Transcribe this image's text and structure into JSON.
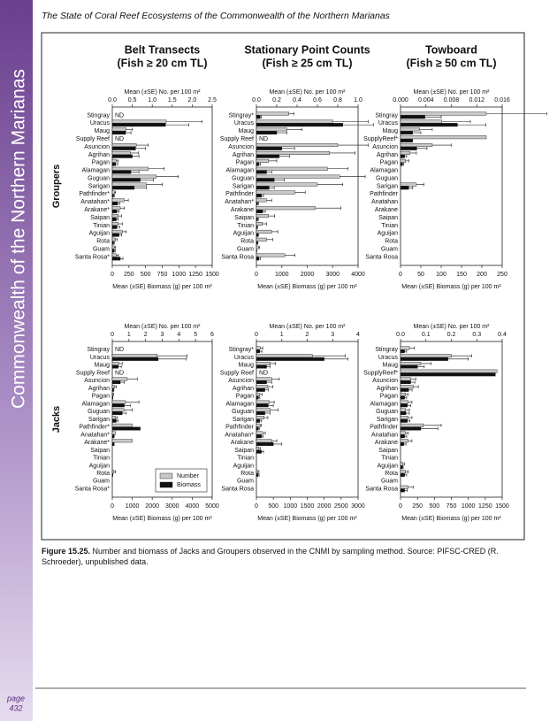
{
  "header": {
    "title": "The State of Coral Reef Ecosystems of the Commonwealth of the Northern Marianas"
  },
  "sidebar": {
    "title": "Commonwealth of the Northern Marianas",
    "page_label": "page",
    "page_number": "432"
  },
  "columns": [
    {
      "title": "Belt Transects",
      "subtitle": "(Fish ≥ 20 cm TL)"
    },
    {
      "title": "Stationary Point Counts",
      "subtitle": "(Fish ≥ 25 cm TL)"
    },
    {
      "title": "Towboard",
      "subtitle": "(Fish ≥ 50 cm TL)"
    }
  ],
  "rows": [
    "Groupers",
    "Jacks"
  ],
  "caption": {
    "label": "Figure 15.25.",
    "text": "Number and biomass of Jacks and Groupers observed in the CNMI by sampling method.  Source: PIFSC-CRED (R. Schroeder), unpublished data."
  },
  "chart_data": [
    {
      "type": "bar",
      "orientation": "horizontal",
      "categories": [
        "Stingray",
        "Uracus",
        "Maug",
        "Supply Reef",
        "Asuncion",
        "Agrihan",
        "Pagan",
        "Alamagan",
        "Guguan",
        "Sarigan",
        "Pathfinder*",
        "Anatahan*",
        "Arakane*",
        "Saipan",
        "Tinian",
        "Aguijan",
        "Rota",
        "Guam",
        "Santa Rosa*"
      ],
      "x2label": "Mean (±SE) No. per 100 m²",
      "x2lim": [
        0,
        2.5
      ],
      "x2ticks": [
        {
          "value": 0,
          "label": "0.0"
        },
        0.5,
        {
          "value": 1,
          "label": "1.0"
        },
        1.5,
        {
          "value": 2,
          "label": "2.0"
        },
        2.5
      ],
      "xlabel": "Mean (±SE) Biomass (g) per 100 m²",
      "xlim": [
        0,
        1500
      ],
      "xticks": [
        0,
        250,
        500,
        750,
        1000,
        1250,
        1500
      ],
      "series": [
        {
          "color": "#c8c8c8",
          "axis": "x2",
          "values": [
            null,
            1.35,
            0.35,
            null,
            0.6,
            0.45,
            0.1,
            0.9,
            1.1,
            0.85,
            0.05,
            0.3,
            0.2,
            0.15,
            0.15,
            0.25,
            0.08,
            0.05,
            0.1
          ],
          "errors": [
            null,
            0.9,
            0.15,
            null,
            0.3,
            0.2,
            0.05,
            0.4,
            0.55,
            0.4,
            0.03,
            0.1,
            0.1,
            0.08,
            0.1,
            0.1,
            0.04,
            0.03,
            0.05
          ],
          "value_labels": [
            "ND",
            null,
            null,
            "ND",
            null,
            null,
            null,
            null,
            null,
            null,
            null,
            null,
            null,
            null,
            null,
            null,
            null,
            null,
            null
          ]
        },
        {
          "color": "#111111",
          "values": [
            null,
            800,
            200,
            null,
            350,
            300,
            50,
            280,
            420,
            330,
            20,
            80,
            70,
            60,
            70,
            100,
            20,
            30,
            120
          ],
          "errors": [
            null,
            350,
            80,
            null,
            150,
            100,
            30,
            120,
            200,
            180,
            10,
            30,
            30,
            30,
            40,
            40,
            10,
            15,
            40
          ]
        }
      ]
    },
    {
      "type": "bar",
      "orientation": "horizontal",
      "categories": [
        "Stingray*",
        "Uracus",
        "Maug",
        "Supply Reef",
        "Asuncion",
        "Agrihan",
        "Pagan",
        "Alamagan",
        "Guguan",
        "Sarigan",
        "Pathfinder",
        "Anatahan*",
        "Arakane",
        "Saipan",
        "Tinian",
        "Aguijan",
        "Rota",
        "Guam",
        "Santa Rosa"
      ],
      "x2label": "Mean (±SE) No. per 100 m²",
      "x2lim": [
        0,
        1
      ],
      "x2ticks": [
        {
          "value": 0,
          "label": "0.0"
        },
        0.2,
        0.4,
        0.6,
        0.8,
        {
          "value": 1,
          "label": "1.0"
        }
      ],
      "xlabel": "Mean (±SE) Biomass (g) per 100 m²",
      "xlim": [
        0,
        4000
      ],
      "xticks": [
        0,
        1000,
        2000,
        3000,
        4000
      ],
      "series": [
        {
          "color": "#c8c8c8",
          "axis": "x2",
          "values": [
            0.32,
            0.75,
            0.3,
            null,
            0.8,
            0.72,
            0.12,
            0.7,
            0.82,
            0.6,
            0.38,
            0.1,
            0.58,
            0.12,
            0.06,
            0.15,
            0.1,
            0.02,
            0.28
          ],
          "errors": [
            0.05,
            0.35,
            0.15,
            null,
            0.3,
            0.25,
            0.08,
            0.2,
            0.25,
            0.25,
            0.1,
            0.05,
            0.25,
            0.06,
            0.04,
            0.06,
            0.06,
            0.01,
            0.1
          ],
          "value_labels": [
            null,
            null,
            null,
            "ND",
            null,
            null,
            null,
            null,
            null,
            null,
            null,
            null,
            null,
            null,
            null,
            null,
            null,
            null,
            null
          ]
        },
        {
          "color": "#111111",
          "values": [
            150,
            3400,
            800,
            null,
            1000,
            900,
            100,
            400,
            700,
            500,
            200,
            50,
            250,
            50,
            30,
            60,
            40,
            10,
            100
          ],
          "errors": [
            50,
            1200,
            400,
            null,
            500,
            400,
            60,
            200,
            400,
            200,
            80,
            30,
            100,
            30,
            20,
            30,
            20,
            5,
            50
          ]
        }
      ]
    },
    {
      "type": "bar",
      "orientation": "horizontal",
      "categories": [
        "Stingray",
        "Uracus",
        "Maug",
        "SupplyReef*",
        "Asuncion",
        "Agrihan",
        "Pagan",
        "Alamagan",
        "Guguan",
        "Sarigan",
        "Pathfinder",
        "Anatahan",
        "Arakane",
        "Saipan",
        "Tinian",
        "Aguijan",
        "Rota",
        "Guam",
        "Santa Rosa"
      ],
      "x2label": "Mean (±SE) No. per 100 m²",
      "x2lim": [
        0,
        0.016
      ],
      "x2ticks": [
        {
          "value": 0,
          "label": "0.000"
        },
        0.004,
        0.008,
        0.012,
        0.016
      ],
      "xlabel": "Mean (±SE) Biomass (g) per 100 m²",
      "xlim": [
        0,
        250
      ],
      "xticks": [
        0,
        50,
        100,
        150,
        200,
        250
      ],
      "series": [
        {
          "color": "#c8c8c8",
          "axis": "x2",
          "values": [
            0.0135,
            0.0065,
            0.003,
            0.0135,
            0.005,
            0.0015,
            0.0008,
            0,
            0,
            0.0025,
            0,
            0,
            0,
            0,
            0,
            0,
            0,
            0,
            0
          ],
          "errors": [
            0.0095,
            0.0045,
            0.002,
            0,
            0.003,
            0.001,
            0.0005,
            0,
            0,
            0.0012,
            0,
            0,
            0,
            0,
            0,
            0,
            0,
            0,
            0
          ]
        },
        {
          "color": "#111111",
          "values": [
            60,
            140,
            30,
            30,
            40,
            10,
            5,
            0,
            0,
            20,
            0,
            0,
            0,
            0,
            0,
            0,
            0,
            0,
            0
          ],
          "errors": [
            40,
            70,
            20,
            0,
            25,
            5,
            3,
            0,
            0,
            10,
            0,
            0,
            0,
            0,
            0,
            0,
            0,
            0,
            0
          ]
        }
      ]
    },
    {
      "type": "bar",
      "orientation": "horizontal",
      "categories": [
        "Stingray",
        "Uracus",
        "Maug",
        "Supply Reef",
        "Asuncion",
        "Agrihan",
        "Pagan",
        "Alamagan",
        "Guguan",
        "Sarigan",
        "Pathfinder*",
        "Anatahan*",
        "Arakane*",
        "Saipan",
        "Tinian",
        "Aguijan",
        "Rota",
        "Guam",
        "Santa Rosa*"
      ],
      "x2label": "Mean (±SE) No. per 100 m²",
      "x2lim": [
        0,
        6
      ],
      "x2ticks": [
        0,
        1,
        2,
        3,
        4,
        5,
        6
      ],
      "xlabel": "Mean (±SE) Biomass (g) per 100 m²",
      "xlim": [
        0,
        5000
      ],
      "xticks": [
        0,
        1000,
        2000,
        3000,
        4000,
        5000
      ],
      "legend": "lower right",
      "series": [
        {
          "name": "Number",
          "color": "#c8c8c8",
          "axis": "x2",
          "values": [
            null,
            2.7,
            0.4,
            null,
            0.9,
            0.15,
            0.05,
            0.8,
            0.7,
            0.2,
            1.2,
            0.2,
            1.2,
            0,
            0,
            0,
            0.1,
            0,
            0
          ],
          "errors": [
            null,
            1.8,
            0.2,
            null,
            0.6,
            0.1,
            0.03,
            0.8,
            0.5,
            0.1,
            0,
            0,
            0,
            0,
            0,
            0,
            0.1,
            0,
            0
          ],
          "value_labels": [
            "ND",
            null,
            null,
            "ND",
            null,
            null,
            null,
            null,
            null,
            null,
            null,
            null,
            null,
            null,
            null,
            null,
            null,
            null,
            null
          ]
        },
        {
          "name": "Biomass",
          "color": "#111111",
          "values": [
            null,
            2300,
            300,
            null,
            400,
            50,
            20,
            600,
            500,
            200,
            1400,
            100,
            100,
            0,
            0,
            0,
            20,
            0,
            0
          ],
          "errors": [
            null,
            1400,
            150,
            null,
            200,
            30,
            10,
            300,
            200,
            100,
            0,
            0,
            0,
            0,
            0,
            0,
            10,
            0,
            0
          ]
        }
      ]
    },
    {
      "type": "bar",
      "orientation": "horizontal",
      "categories": [
        "Stingray*",
        "Uracus",
        "Maug",
        "Supply Reef",
        "Asuncion",
        "Agrihan",
        "Pagan",
        "Alamagan",
        "Guguan",
        "Sarigan",
        "Pathfinder",
        "Anatahan*",
        "Arakane",
        "Saipan",
        "Tinian",
        "Aguijan",
        "Rota",
        "Guam",
        "Santa Rosa"
      ],
      "x2label": "Mean (±SE) No. per 100 m²",
      "x2lim": [
        0,
        4
      ],
      "x2ticks": [
        0,
        1,
        2,
        3,
        4
      ],
      "xlabel": "Mean (±SE) Biomass (g) per 100 m²",
      "xlim": [
        0,
        3000
      ],
      "xticks": [
        0,
        500,
        1000,
        1500,
        2000,
        2500,
        3000
      ],
      "series": [
        {
          "color": "#c8c8c8",
          "axis": "x2",
          "values": [
            0.15,
            2.2,
            0.55,
            null,
            0.6,
            0.45,
            0.12,
            0.5,
            0.55,
            0.3,
            0.15,
            0.25,
            0.6,
            0.1,
            0,
            0,
            0.05,
            0,
            0
          ],
          "errors": [
            0.1,
            1.3,
            0.2,
            null,
            0.3,
            0.2,
            0.1,
            0.2,
            0.3,
            0.15,
            0.05,
            0.1,
            0.2,
            0.05,
            0,
            0,
            0.05,
            0,
            0
          ],
          "value_labels": [
            null,
            null,
            null,
            "ND",
            null,
            null,
            null,
            null,
            null,
            null,
            null,
            null,
            null,
            null,
            null,
            null,
            null,
            null,
            null
          ]
        },
        {
          "color": "#111111",
          "values": [
            100,
            2000,
            300,
            null,
            300,
            250,
            60,
            350,
            250,
            100,
            60,
            150,
            500,
            150,
            0,
            0,
            50,
            0,
            0
          ],
          "errors": [
            60,
            700,
            100,
            null,
            150,
            100,
            40,
            150,
            150,
            50,
            30,
            50,
            250,
            60,
            0,
            0,
            30,
            0,
            0
          ]
        }
      ]
    },
    {
      "type": "bar",
      "orientation": "horizontal",
      "categories": [
        "Stingray",
        "Uracus",
        "Maug",
        "SupplyReef*",
        "Asuncion",
        "Agrihan",
        "Pagan",
        "Alamagan",
        "Guguan",
        "Sarigan",
        "Pathfinder",
        "Anatahan",
        "Arakane",
        "Saipan",
        "Tinian",
        "Aguijan",
        "Rota",
        "Guam",
        "Santa Rosa"
      ],
      "x2label": "Mean (±SE) No. per 100 m²",
      "x2lim": [
        0,
        0.4
      ],
      "x2ticks": [
        {
          "value": 0,
          "label": "0.0"
        },
        0.1,
        0.2,
        0.3,
        0.4
      ],
      "xlabel": "Mean (±SE) Biomass (g) per 100 m²",
      "xlim": [
        0,
        1500
      ],
      "xticks": [
        0,
        250,
        500,
        750,
        1000,
        1250,
        1500
      ],
      "series": [
        {
          "color": "#c8c8c8",
          "axis": "x2",
          "values": [
            0.035,
            0.2,
            0.08,
            0.38,
            0.04,
            0.05,
            0.02,
            0.03,
            0.02,
            0.03,
            0.09,
            0.02,
            0.03,
            0,
            0,
            0.01,
            0.02,
            0,
            0.03
          ],
          "errors": [
            0.02,
            0.08,
            0.04,
            0,
            0.02,
            0.02,
            0.01,
            0.015,
            0.015,
            0.015,
            0.07,
            0.01,
            0.015,
            0,
            0,
            0.005,
            0.01,
            0,
            0.02
          ]
        },
        {
          "color": "#111111",
          "values": [
            60,
            700,
            250,
            1400,
            150,
            120,
            60,
            100,
            80,
            100,
            300,
            60,
            50,
            0,
            0,
            30,
            60,
            0,
            60
          ],
          "errors": [
            30,
            300,
            100,
            0,
            60,
            50,
            30,
            50,
            50,
            40,
            250,
            30,
            30,
            0,
            0,
            10,
            30,
            0,
            40
          ]
        }
      ]
    }
  ]
}
